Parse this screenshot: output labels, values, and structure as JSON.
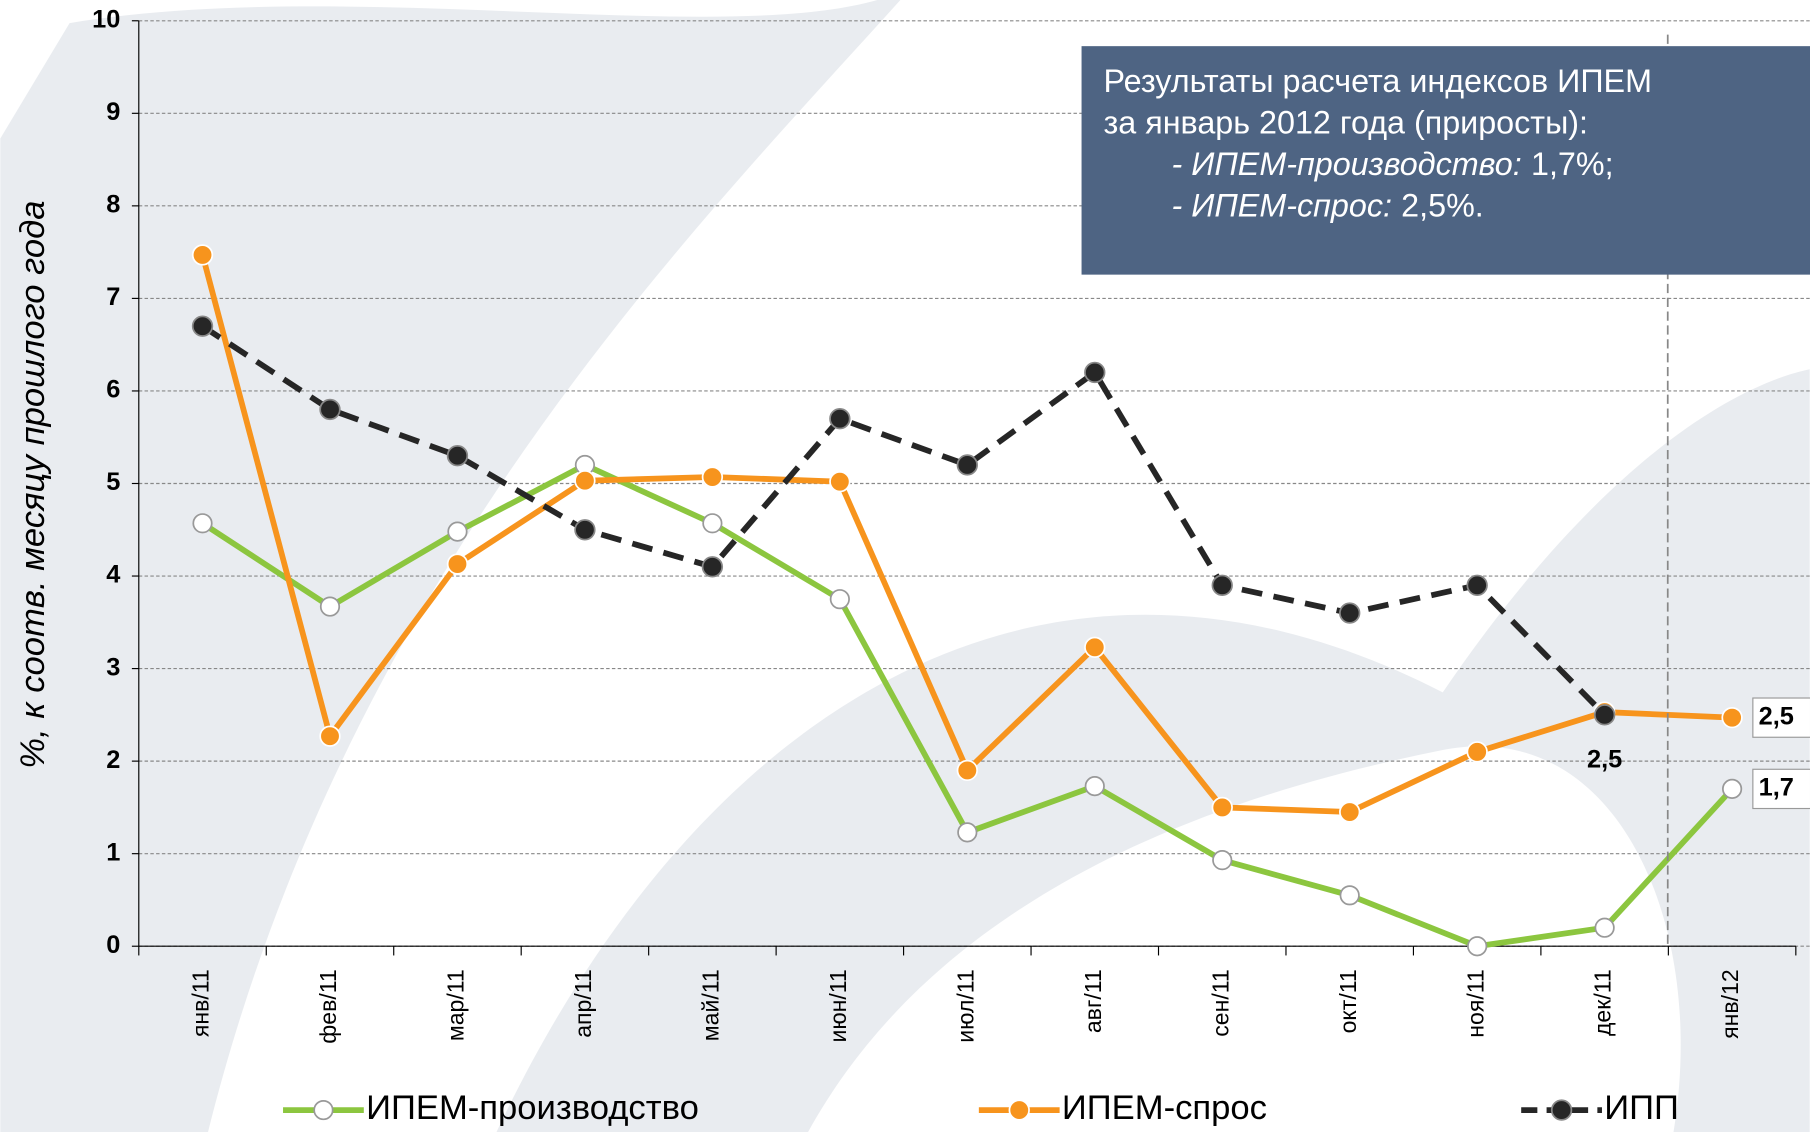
{
  "chart_data": {
    "type": "line",
    "y_label": "%, к соотв. месяцу прошлого года",
    "categories": [
      "янв/11",
      "фев/11",
      "мар/11",
      "апр/11",
      "май/11",
      "июн/11",
      "июл/11",
      "авг/11",
      "сен/11",
      "окт/11",
      "ноя/11",
      "дек/11",
      "янв/12"
    ],
    "series": [
      {
        "name": "ИПЕМ-производство",
        "color": "#8cc63f",
        "marker": "hollow",
        "dashed": false,
        "values": [
          4.57,
          3.67,
          4.48,
          5.2,
          4.57,
          3.75,
          1.23,
          1.73,
          0.93,
          0.55,
          0.0,
          0.2,
          1.7
        ],
        "value_labels": [
          null,
          null,
          null,
          null,
          null,
          null,
          null,
          null,
          null,
          null,
          null,
          null,
          "1,7"
        ]
      },
      {
        "name": "ИПЕМ-спрос",
        "color": "#f7941d",
        "marker": "filled",
        "dashed": false,
        "values": [
          7.47,
          2.27,
          4.13,
          5.03,
          5.07,
          5.02,
          1.9,
          3.23,
          1.5,
          1.45,
          2.1,
          2.53,
          2.47
        ],
        "value_labels": [
          null,
          null,
          null,
          null,
          null,
          null,
          null,
          null,
          null,
          null,
          null,
          null,
          "2,5"
        ]
      },
      {
        "name": "ИПП",
        "color": "#262626",
        "marker": "filled",
        "dashed": true,
        "values": [
          6.7,
          5.8,
          5.3,
          4.5,
          4.1,
          5.7,
          5.2,
          6.2,
          3.9,
          3.6,
          3.9,
          2.5,
          null
        ],
        "value_labels": [
          null,
          null,
          null,
          null,
          null,
          null,
          null,
          null,
          null,
          null,
          null,
          "2,5",
          null
        ]
      }
    ],
    "ylim": [
      0,
      10
    ],
    "yticks": [
      0,
      1,
      2,
      3,
      4,
      5,
      6,
      7,
      8,
      9,
      10
    ],
    "grid": true,
    "annotation": {
      "lines": [
        "Результаты расчета индексов ИПЕМ",
        "за январь 2012 года (приросты):"
      ],
      "items": [
        {
          "label": "- ИПЕМ-производство:",
          "value": "1,7%;"
        },
        {
          "label": "- ИПЕМ-спрос:",
          "value": "2,5%."
        }
      ]
    }
  }
}
